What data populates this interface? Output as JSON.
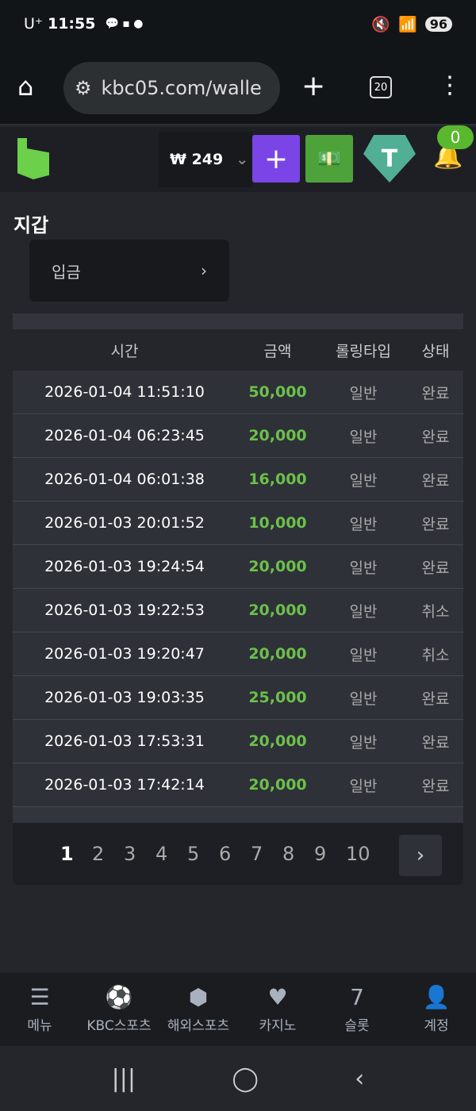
{
  "status_bar": {
    "carrier": "U⁺",
    "time": "11:55",
    "battery": "96"
  },
  "browser": {
    "url": "kbc05.com/walle",
    "tab_count": "20"
  },
  "header": {
    "balance": "₩ 249",
    "notification_count": "0"
  },
  "page": {
    "title": "지갑",
    "deposit_label": "입금"
  },
  "table": {
    "columns": [
      "시간",
      "금액",
      "롤링타입",
      "상태"
    ],
    "rows": [
      [
        "2026-01-04 11:51:10",
        "50,000",
        "일반",
        "완료"
      ],
      [
        "2026-01-04 06:23:45",
        "20,000",
        "일반",
        "완료"
      ],
      [
        "2026-01-04 06:01:38",
        "16,000",
        "일반",
        "완료"
      ],
      [
        "2026-01-03 20:01:52",
        "10,000",
        "일반",
        "완료"
      ],
      [
        "2026-01-03 19:24:54",
        "20,000",
        "일반",
        "완료"
      ],
      [
        "2026-01-03 19:22:53",
        "20,000",
        "일반",
        "취소"
      ],
      [
        "2026-01-03 19:20:47",
        "20,000",
        "일반",
        "취소"
      ],
      [
        "2026-01-03 19:03:35",
        "25,000",
        "일반",
        "완료"
      ],
      [
        "2026-01-03 17:53:31",
        "20,000",
        "일반",
        "완료"
      ],
      [
        "2026-01-03 17:42:14",
        "20,000",
        "일반",
        "완료"
      ]
    ]
  },
  "pagination": {
    "pages": [
      "1",
      "2",
      "3",
      "4",
      "5",
      "6",
      "7",
      "8",
      "9",
      "10"
    ],
    "current": "1"
  },
  "bottom_nav": [
    {
      "label": "메뉴",
      "icon": "menu-search-icon"
    },
    {
      "label": "KBC스포츠",
      "icon": "soccer-ball-icon"
    },
    {
      "label": "해외스포츠",
      "icon": "dice-icon"
    },
    {
      "label": "카지노",
      "icon": "cards-icon"
    },
    {
      "label": "슬롯",
      "icon": "slot-icon"
    },
    {
      "label": "계정",
      "icon": "account-icon"
    }
  ],
  "colors": {
    "amount": "#6cc04a",
    "brand": "#6cd04a",
    "deposit_button": "#7b44e6",
    "cash_button": "#4ea23a",
    "tether": "#50af95"
  }
}
